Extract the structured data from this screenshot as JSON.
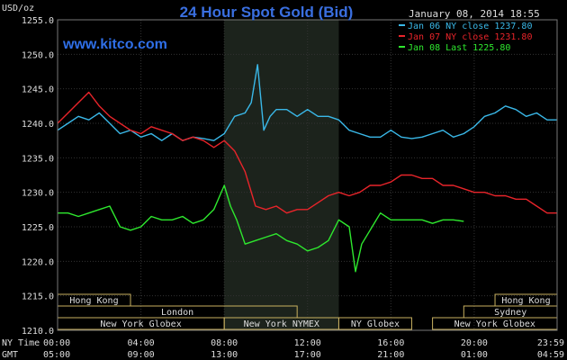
{
  "chart_data": {
    "type": "line",
    "title": "24 Hour Spot Gold (Bid)",
    "watermark": "www.kitco.com",
    "timestamp": "January 08, 2014 18:55",
    "ylabel": "USD/oz",
    "ylim": [
      1210,
      1255
    ],
    "yticks": [
      "1255.0",
      "1250.0",
      "1245.0",
      "1240.0",
      "1235.0",
      "1230.0",
      "1225.0",
      "1220.0",
      "1215.0",
      "1210.0"
    ],
    "x_axis": {
      "ny_label": "NY Time",
      "gmt_label": "GMT",
      "ny_ticks": [
        "00:00",
        "04:00",
        "08:00",
        "12:00",
        "16:00",
        "20:00",
        "23:59"
      ],
      "gmt_ticks": [
        "05:00",
        "09:00",
        "13:00",
        "17:00",
        "21:00",
        "01:00",
        "04:59"
      ],
      "range_hours": [
        0,
        23.98
      ]
    },
    "sessions": [
      {
        "name": "Hong Kong",
        "start": 0,
        "end": 3.5
      },
      {
        "name": "Hong Kong",
        "start": 21,
        "end": 23.98
      },
      {
        "name": "London",
        "start": 0,
        "end": 11.5
      },
      {
        "name": "Sydney",
        "start": 19.5,
        "end": 23.98
      },
      {
        "name": "New York Globex",
        "start": 0,
        "end": 8.0
      },
      {
        "name": "New York NYMEX",
        "start": 8.0,
        "end": 13.5
      },
      {
        "name": "NY Globex",
        "start": 13.5,
        "end": 17.0
      },
      {
        "name": "New York Globex",
        "start": 18.0,
        "end": 23.98
      }
    ],
    "shaded_hours": [
      8.0,
      13.5
    ],
    "series": [
      {
        "name": "Jan 06 NY close 1237.80",
        "color": "#3ab8e8",
        "x": [
          0,
          0.5,
          1,
          1.5,
          2,
          2.5,
          3,
          3.5,
          4,
          4.5,
          5,
          5.5,
          6,
          6.5,
          7,
          7.5,
          8,
          8.5,
          9,
          9.3,
          9.6,
          9.9,
          10.2,
          10.5,
          11,
          11.5,
          12,
          12.5,
          13,
          13.5,
          14,
          14.5,
          15,
          15.5,
          16,
          16.5,
          17,
          17.5,
          18,
          18.5,
          19,
          19.5,
          20,
          20.5,
          21,
          21.5,
          22,
          22.5,
          23,
          23.5,
          23.98
        ],
        "values": [
          1239.0,
          1240.0,
          1241.0,
          1240.5,
          1241.5,
          1240.0,
          1238.5,
          1239.0,
          1238.0,
          1238.5,
          1237.5,
          1238.5,
          1237.5,
          1238.0,
          1237.8,
          1237.5,
          1238.5,
          1241.0,
          1241.5,
          1243.0,
          1248.5,
          1239.0,
          1241.0,
          1242.0,
          1242.0,
          1241.0,
          1242.0,
          1241.0,
          1241.0,
          1240.5,
          1239.0,
          1238.5,
          1238.0,
          1238.0,
          1239.0,
          1238.0,
          1237.8,
          1238.0,
          1238.5,
          1239.0,
          1238.0,
          1238.5,
          1239.5,
          1241.0,
          1241.5,
          1242.5,
          1242.0,
          1241.0,
          1241.5,
          1240.5,
          1240.5
        ]
      },
      {
        "name": "Jan 07 NY close 1231.80",
        "color": "#e8242a",
        "x": [
          0,
          0.5,
          1,
          1.5,
          2,
          2.5,
          3,
          3.5,
          4,
          4.5,
          5,
          5.5,
          6,
          6.5,
          7,
          7.5,
          8,
          8.5,
          9,
          9.5,
          10,
          10.5,
          11,
          11.5,
          12,
          12.5,
          13,
          13.5,
          14,
          14.5,
          15,
          15.5,
          16,
          16.5,
          17,
          17.5,
          18,
          18.5,
          19,
          19.5,
          20,
          20.5,
          21,
          21.5,
          22,
          22.5,
          23,
          23.5,
          23.98
        ],
        "values": [
          1240.0,
          1241.5,
          1243.0,
          1244.5,
          1242.5,
          1241.0,
          1240.0,
          1239.0,
          1238.5,
          1239.5,
          1239.0,
          1238.5,
          1237.5,
          1238.0,
          1237.5,
          1236.5,
          1237.5,
          1236.0,
          1233.0,
          1228.0,
          1227.5,
          1228.0,
          1227.0,
          1227.5,
          1227.5,
          1228.5,
          1229.5,
          1230.0,
          1229.5,
          1230.0,
          1231.0,
          1231.0,
          1231.5,
          1232.5,
          1232.5,
          1232.0,
          1232.0,
          1231.0,
          1231.0,
          1230.5,
          1230.0,
          1230.0,
          1229.5,
          1229.5,
          1229.0,
          1229.0,
          1228.0,
          1227.0,
          1227.0
        ]
      },
      {
        "name": "Jan 08 Last 1225.80",
        "color": "#2ee82e",
        "x": [
          0,
          0.5,
          1,
          1.5,
          2,
          2.5,
          3,
          3.5,
          4,
          4.5,
          5,
          5.5,
          6,
          6.5,
          7,
          7.5,
          8,
          8.3,
          8.6,
          9,
          9.5,
          10,
          10.5,
          11,
          11.5,
          12,
          12.5,
          13,
          13.5,
          14,
          14.3,
          14.6,
          15,
          15.5,
          16,
          16.5,
          17,
          17.5,
          18,
          18.5,
          19,
          19.5
        ],
        "values": [
          1227.0,
          1227.0,
          1226.5,
          1227.0,
          1227.5,
          1228.0,
          1225.0,
          1224.5,
          1225.0,
          1226.5,
          1226.0,
          1226.0,
          1226.5,
          1225.5,
          1226.0,
          1227.5,
          1231.0,
          1228.0,
          1226.0,
          1222.5,
          1223.0,
          1223.5,
          1224.0,
          1223.0,
          1222.5,
          1221.5,
          1222.0,
          1223.0,
          1226.0,
          1225.0,
          1218.5,
          1222.5,
          1224.5,
          1227.0,
          1226.0,
          1226.0,
          1226.0,
          1226.0,
          1225.5,
          1226.0,
          1226.0,
          1225.8
        ]
      }
    ]
  }
}
